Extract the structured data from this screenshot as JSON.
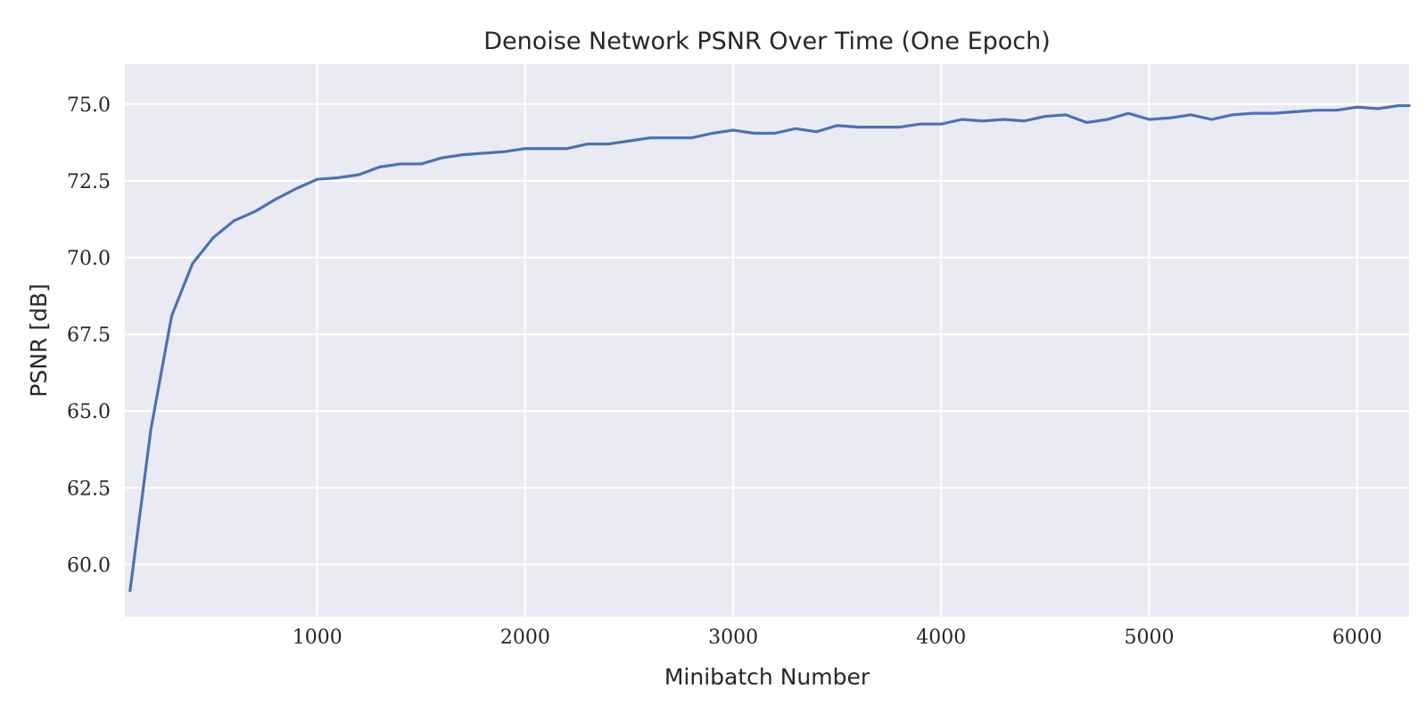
{
  "chart_data": {
    "type": "line",
    "title": "Denoise Network PSNR Over Time (One Epoch)",
    "xlabel": "Minibatch Number",
    "ylabel": "PSNR [dB]",
    "xlim": [
      75,
      6250
    ],
    "ylim": [
      58.3,
      76.3
    ],
    "xticks": [
      1000,
      2000,
      3000,
      4000,
      5000,
      6000
    ],
    "yticks": [
      60.0,
      62.5,
      65.0,
      67.5,
      70.0,
      72.5,
      75.0
    ],
    "xtick_labels": [
      "1000",
      "2000",
      "3000",
      "4000",
      "5000",
      "6000"
    ],
    "ytick_labels": [
      "60.0",
      "62.5",
      "65.0",
      "67.5",
      "70.0",
      "72.5",
      "75.0"
    ],
    "grid": true,
    "background_color": "#eaeaf2",
    "series": [
      {
        "color": "#4c72b0",
        "x": [
          100,
          200,
          300,
          400,
          500,
          600,
          700,
          800,
          900,
          1000,
          1100,
          1200,
          1300,
          1400,
          1500,
          1600,
          1700,
          1800,
          1900,
          2000,
          2100,
          2200,
          2300,
          2400,
          2500,
          2600,
          2700,
          2800,
          2900,
          3000,
          3100,
          3200,
          3300,
          3400,
          3500,
          3600,
          3700,
          3800,
          3900,
          4000,
          4100,
          4200,
          4300,
          4400,
          4500,
          4600,
          4700,
          4800,
          4900,
          5000,
          5100,
          5200,
          5300,
          5400,
          5500,
          5600,
          5700,
          5800,
          5900,
          6000,
          6100,
          6200,
          6250
        ],
        "values": [
          59.15,
          64.4,
          68.1,
          69.8,
          70.65,
          71.2,
          71.5,
          71.9,
          72.25,
          72.55,
          72.6,
          72.7,
          72.95,
          73.05,
          73.05,
          73.25,
          73.35,
          73.4,
          73.45,
          73.55,
          73.55,
          73.55,
          73.7,
          73.7,
          73.8,
          73.9,
          73.9,
          73.9,
          74.05,
          74.15,
          74.05,
          74.05,
          74.2,
          74.1,
          74.3,
          74.25,
          74.25,
          74.25,
          74.35,
          74.35,
          74.5,
          74.45,
          74.5,
          74.45,
          74.6,
          74.65,
          74.4,
          74.5,
          74.7,
          74.5,
          74.55,
          74.65,
          74.5,
          74.65,
          74.7,
          74.7,
          74.75,
          74.8,
          74.8,
          74.9,
          74.85,
          74.95,
          74.95
        ]
      }
    ]
  }
}
